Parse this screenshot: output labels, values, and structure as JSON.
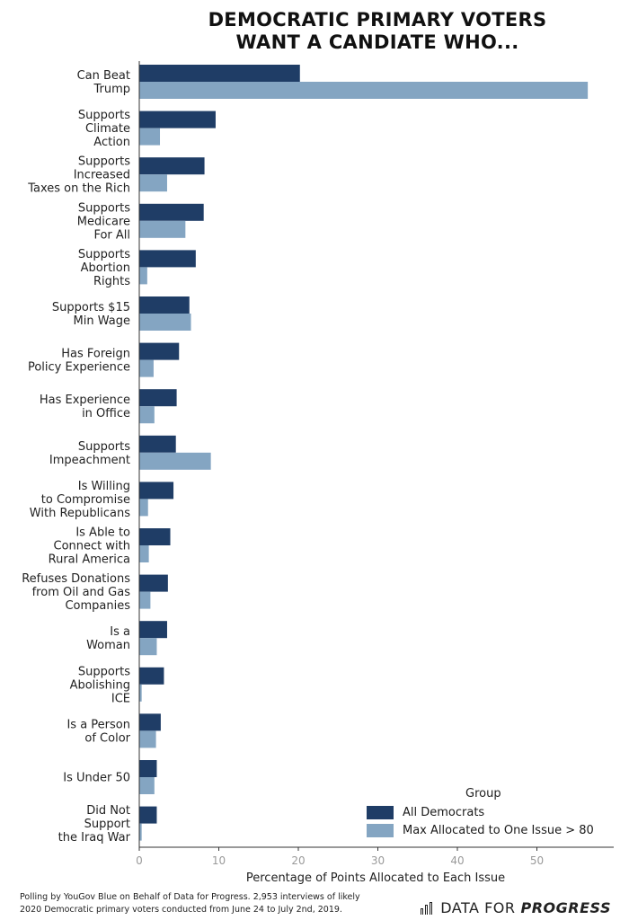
{
  "title_line1": "DEMOCRATIC PRIMARY VOTERS",
  "title_line2": "WANT A CANDIATE WHO...",
  "chart_data": {
    "type": "bar",
    "orientation": "horizontal",
    "title": "DEMOCRATIC PRIMARY VOTERS WANT A CANDIATE WHO...",
    "xlabel": "Percentage of Points Allocated to Each Issue",
    "ylabel": "",
    "xlim": [
      0,
      58
    ],
    "xticks": [
      0,
      10,
      20,
      30,
      40,
      50
    ],
    "grid": false,
    "legend_title": "Group",
    "legend_position": "bottom-right",
    "categories": [
      [
        "Can Beat",
        "Trump"
      ],
      [
        "Supports",
        "Climate",
        "Action"
      ],
      [
        "Supports",
        "Increased",
        "Taxes on the Rich"
      ],
      [
        "Supports",
        "Medicare",
        "For All"
      ],
      [
        "Supports",
        "Abortion",
        "Rights"
      ],
      [
        "Supports $15",
        "Min Wage"
      ],
      [
        "Has Foreign",
        "Policy Experience"
      ],
      [
        "Has Experience",
        "in Office"
      ],
      [
        "Supports",
        "Impeachment"
      ],
      [
        "Is Willing",
        "to Compromise",
        "With Republicans"
      ],
      [
        "Is Able to",
        "Connect with",
        "Rural America"
      ],
      [
        "Refuses Donations",
        "from Oil and Gas",
        "Companies"
      ],
      [
        "Is a",
        "Woman"
      ],
      [
        "Supports",
        "Abolishing",
        "ICE"
      ],
      [
        "Is a Person",
        "of Color"
      ],
      [
        "Is Under 50"
      ],
      [
        "Did Not",
        "Support",
        "the Iraq War"
      ]
    ],
    "series": [
      {
        "name": "All Democrats",
        "color": "#1f3d66",
        "values": [
          20.2,
          9.6,
          8.2,
          8.1,
          7.1,
          6.3,
          5.0,
          4.7,
          4.6,
          4.3,
          3.9,
          3.6,
          3.5,
          3.1,
          2.7,
          2.2,
          2.2
        ]
      },
      {
        "name": "Max Allocated to One Issue > 80",
        "color": "#84a5c2",
        "values": [
          56.4,
          2.6,
          3.5,
          5.8,
          1.0,
          6.5,
          1.8,
          1.9,
          9.0,
          1.1,
          1.2,
          1.4,
          2.2,
          0.3,
          2.1,
          1.9,
          0.3
        ]
      }
    ]
  },
  "footer_line1": "Polling by YouGov Blue on Behalf of Data for Progress. 2,953 interviews of likely",
  "footer_line2": "2020 Democratic primary voters conducted from June 24 to July 2nd, 2019.",
  "brand_text_1": "DATA FOR",
  "brand_text_2": "PROGRESS"
}
